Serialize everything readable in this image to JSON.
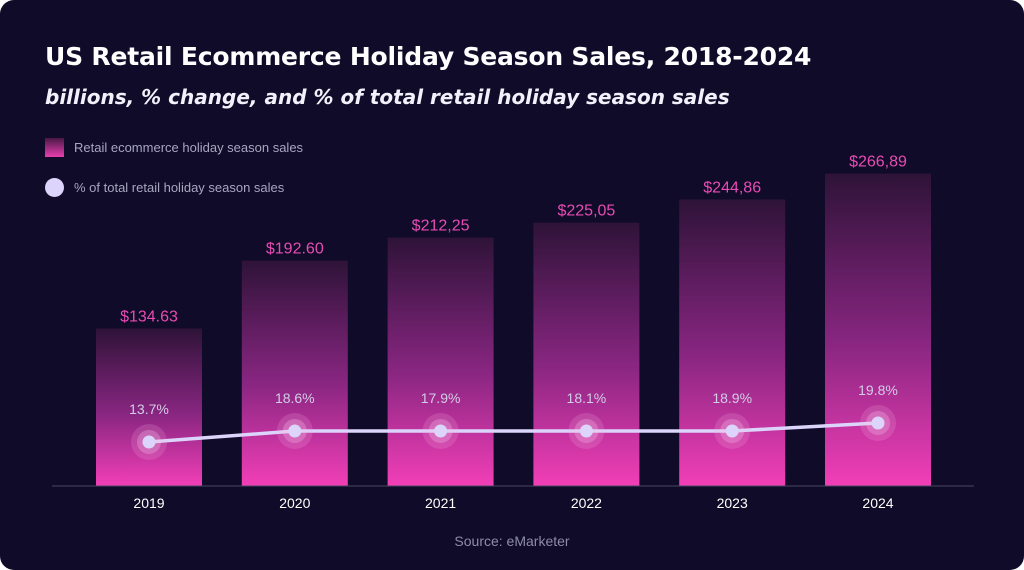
{
  "chart_data": {
    "type": "bar",
    "title": "US Retail Ecommerce Holiday Season Sales, 2018-2024",
    "subtitle": "billions, % change, and % of total retail holiday season sales",
    "categories": [
      "2019",
      "2020",
      "2021",
      "2022",
      "2023",
      "2024"
    ],
    "series": [
      {
        "name": "Retail ecommerce holiday season sales",
        "type": "bar",
        "values": [
          134.63,
          192.6,
          212.25,
          225.05,
          244.86,
          266.89
        ],
        "labels": [
          "$134.63",
          "$192.60",
          "$212,25",
          "$225,05",
          "$244,86",
          "$266,89"
        ]
      },
      {
        "name": "% of total retail holiday season sales",
        "type": "line",
        "values": [
          13.7,
          18.6,
          17.9,
          18.1,
          18.9,
          19.8
        ],
        "labels": [
          "13.7%",
          "18.6%",
          "17.9%",
          "18.1%",
          "18.9%",
          "19.8%"
        ]
      }
    ],
    "grid": false,
    "legend_position": "top-left",
    "source": "Source: eMarketer"
  },
  "colors": {
    "background": "#0f0b28",
    "bar_top": "#2e1338",
    "bar_bottom": "#f23fb7",
    "value_label": "#e84bb4",
    "line": "#dcd4fb",
    "percent_label": "#d3cde6",
    "axis": "#4a4766",
    "tick_label": "#ffffff"
  }
}
